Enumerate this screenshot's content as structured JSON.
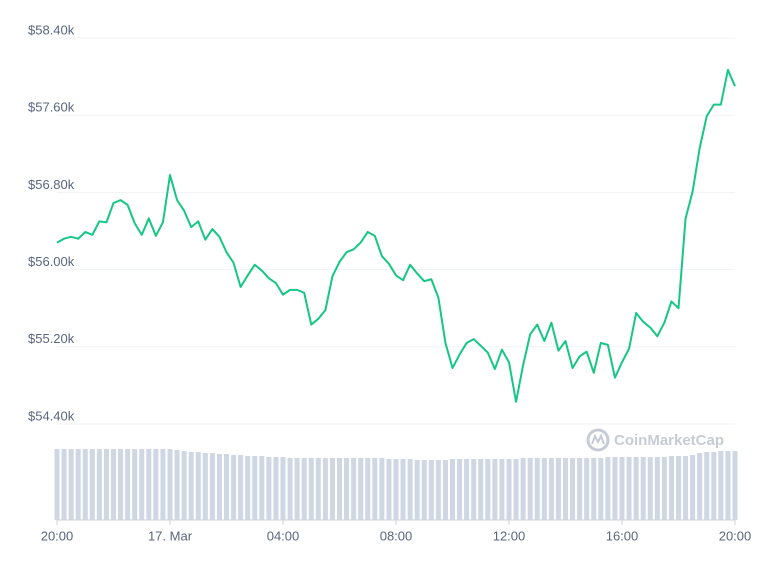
{
  "chart_data": {
    "type": "line",
    "watermark": "CoinMarketCap",
    "x": [
      0,
      0.25,
      0.5,
      0.75,
      1,
      1.25,
      1.5,
      1.75,
      2,
      2.25,
      2.5,
      2.75,
      3,
      3.25,
      3.5,
      3.75,
      4,
      4.25,
      4.5,
      4.75,
      5,
      5.25,
      5.5,
      5.75,
      6,
      6.25,
      6.5,
      6.75,
      7,
      7.25,
      7.5,
      7.75,
      8,
      8.25,
      8.5,
      8.75,
      9,
      9.25,
      9.5,
      9.75,
      10,
      10.25,
      10.5,
      10.75,
      11,
      11.25,
      11.5,
      11.75,
      12,
      12.25,
      12.5,
      12.75,
      13,
      13.25,
      13.5,
      13.75,
      14,
      14.25,
      14.5,
      14.75,
      15,
      15.25,
      15.5,
      15.75,
      16,
      16.25,
      16.5,
      16.75,
      17,
      17.25,
      17.5,
      17.75,
      18,
      18.25,
      18.5,
      18.75,
      19,
      19.25,
      19.5,
      19.75,
      20,
      20.25,
      20.5,
      20.75,
      21,
      21.25,
      21.5,
      21.75,
      22,
      22.25,
      22.5,
      22.75,
      23,
      23.25,
      23.5,
      23.75,
      24
    ],
    "series": [
      {
        "name": "Price",
        "color": "#16c784",
        "values": [
          56280,
          56320,
          56340,
          56320,
          56390,
          56360,
          56500,
          56490,
          56690,
          56720,
          56670,
          56480,
          56360,
          56530,
          56350,
          56490,
          56980,
          56720,
          56610,
          56440,
          56500,
          56310,
          56420,
          56340,
          56180,
          56070,
          55820,
          55940,
          56050,
          55990,
          55910,
          55860,
          55740,
          55790,
          55790,
          55760,
          55430,
          55490,
          55580,
          55930,
          56080,
          56180,
          56210,
          56280,
          56390,
          56350,
          56140,
          56060,
          55940,
          55890,
          56050,
          55960,
          55880,
          55900,
          55710,
          55240,
          54980,
          55120,
          55240,
          55280,
          55210,
          55140,
          54970,
          55170,
          55040,
          54630,
          55010,
          55330,
          55430,
          55260,
          55450,
          55160,
          55260,
          54980,
          55100,
          55150,
          54930,
          55240,
          55220,
          54880,
          55040,
          55180,
          55550,
          55460,
          55400,
          55310,
          55450,
          55670,
          55600,
          56530,
          56810,
          57260,
          57590,
          57710,
          57710,
          58070,
          57900
        ]
      },
      {
        "name": "Volume",
        "color": "#cfd6e4",
        "axis": "y2",
        "values": [
          71,
          71,
          71,
          71,
          71,
          71,
          71,
          71,
          71,
          71,
          71,
          71,
          71,
          71,
          71,
          71,
          71,
          70,
          69,
          68,
          68,
          67,
          67,
          66,
          66,
          65,
          65,
          64,
          64,
          64,
          63,
          63,
          63,
          62,
          62,
          62,
          62,
          62,
          62,
          62,
          62,
          62,
          62,
          62,
          62,
          62,
          62,
          61,
          61,
          61,
          61,
          60,
          60,
          60,
          60,
          60,
          61,
          61,
          61,
          61,
          61,
          61,
          61,
          61,
          61,
          61,
          62,
          62,
          62,
          62,
          62,
          62,
          62,
          62,
          62,
          62,
          62,
          62,
          63,
          63,
          63,
          63,
          63,
          63,
          63,
          63,
          63,
          64,
          64,
          64,
          65,
          67,
          68,
          68,
          69,
          69,
          69
        ]
      }
    ],
    "xlim": [
      0,
      24
    ],
    "xticks": [
      {
        "value": 0,
        "label": "20:00"
      },
      {
        "value": 4,
        "label": "17. Mar"
      },
      {
        "value": 8,
        "label": "04:00"
      },
      {
        "value": 12,
        "label": "08:00"
      },
      {
        "value": 16,
        "label": "12:00"
      },
      {
        "value": 20,
        "label": "16:00"
      },
      {
        "value": 24,
        "label": "20:00"
      }
    ],
    "ylim": [
      54400,
      58400
    ],
    "yticks": [
      {
        "value": 54400,
        "label": "$54.40k"
      },
      {
        "value": 55200,
        "label": "$55.20k"
      },
      {
        "value": 56000,
        "label": "$56.00k"
      },
      {
        "value": 56800,
        "label": "$56.80k"
      },
      {
        "value": 57600,
        "label": "$57.60k"
      },
      {
        "value": 58400,
        "label": "$58.40k"
      }
    ],
    "y2lim": [
      0,
      80
    ],
    "grid": true
  }
}
